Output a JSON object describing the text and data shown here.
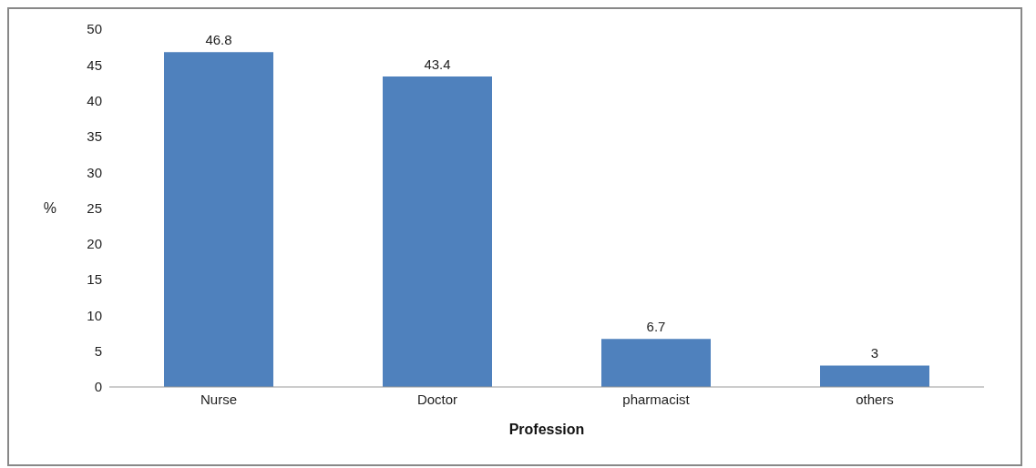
{
  "chart_data": {
    "type": "bar",
    "xlabel": "Profession",
    "ylabel": "%",
    "categories": [
      "Nurse",
      "Doctor",
      "pharmacist",
      "others"
    ],
    "values": [
      46.8,
      43.4,
      6.7,
      3
    ],
    "color": "#4f81bd",
    "ylim": [
      0,
      50
    ],
    "yticks": [
      0,
      5,
      10,
      15,
      20,
      25,
      30,
      35,
      40,
      45,
      50
    ],
    "data_labels": true,
    "grid": false,
    "legend": false
  }
}
